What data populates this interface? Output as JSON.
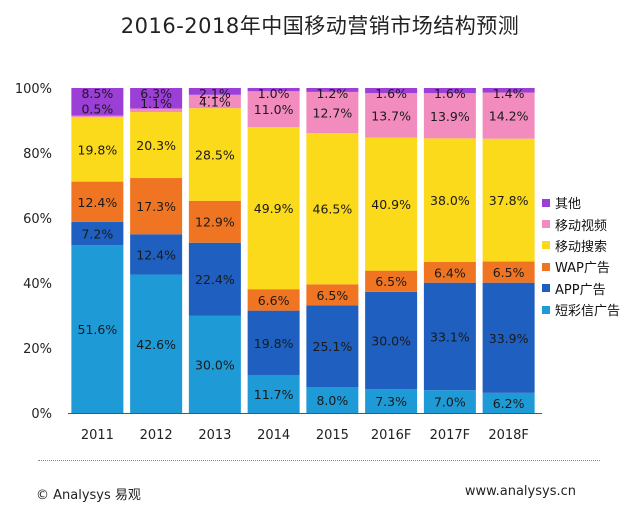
{
  "title": "2016-2018年中国移动营销市场结构预测",
  "footer": {
    "left": "© Analysys 易观",
    "right": "www.analysys.cn"
  },
  "chart_data": {
    "type": "bar",
    "stacked": true,
    "categories": [
      "2011",
      "2012",
      "2013",
      "2014",
      "2015",
      "2016F",
      "2017F",
      "2018F"
    ],
    "y_ticks": [
      "0%",
      "20%",
      "40%",
      "60%",
      "80%",
      "100%"
    ],
    "ylim": [
      0,
      100
    ],
    "legend_position": "right",
    "series": [
      {
        "name": "短彩信广告",
        "color": "#1e9ad6",
        "values": [
          51.6,
          42.6,
          30.0,
          11.7,
          8.0,
          7.3,
          7.0,
          6.2
        ]
      },
      {
        "name": "APP广告",
        "color": "#1f5fbf",
        "values": [
          7.2,
          12.4,
          22.4,
          19.8,
          25.1,
          30.0,
          33.1,
          33.9
        ]
      },
      {
        "name": "WAP广告",
        "color": "#f07522",
        "values": [
          12.4,
          17.3,
          12.9,
          6.6,
          6.5,
          6.5,
          6.4,
          6.5
        ]
      },
      {
        "name": "移动搜索",
        "color": "#fbd91b",
        "values": [
          19.8,
          20.3,
          28.5,
          49.9,
          46.5,
          40.9,
          38.0,
          37.8
        ]
      },
      {
        "name": "移动视频",
        "color": "#f28cbe",
        "values": [
          0.5,
          1.1,
          4.1,
          11.0,
          12.7,
          13.7,
          13.9,
          14.2
        ]
      },
      {
        "name": "其他",
        "color": "#9b3fd6",
        "values": [
          8.5,
          6.3,
          2.1,
          1.0,
          1.2,
          1.6,
          1.6,
          1.4
        ]
      }
    ],
    "labels": [
      [
        "51.6%",
        "42.6%",
        "30.0%",
        "11.7%",
        "8.0%",
        "7.3%",
        "7.0%",
        "6.2%"
      ],
      [
        "7.2%",
        "12.4%",
        "22.4%",
        "19.8%",
        "25.1%",
        "30.0%",
        "33.1%",
        "33.9%"
      ],
      [
        "12.4%",
        "17.3%",
        "12.9%",
        "6.6%",
        "6.5%",
        "6.5%",
        "6.4%",
        "6.5%"
      ],
      [
        "19.8%",
        "20.3%",
        "28.5%",
        "49.9%",
        "46.5%",
        "40.9%",
        "38.0%",
        "37.8%"
      ],
      [
        "0.5%",
        "1.1%",
        "4.1%",
        "11.0%",
        "12.7%",
        "13.7%",
        "13.9%",
        "14.2%"
      ],
      [
        "8.5%",
        "6.3%",
        "2.1%",
        "1.0%",
        "1.2%",
        "1.6%",
        "1.6%",
        "1.4%"
      ]
    ],
    "legend_order": [
      "其他",
      "移动视频",
      "移动搜索",
      "WAP广告",
      "APP广告",
      "短彩信广告"
    ]
  }
}
